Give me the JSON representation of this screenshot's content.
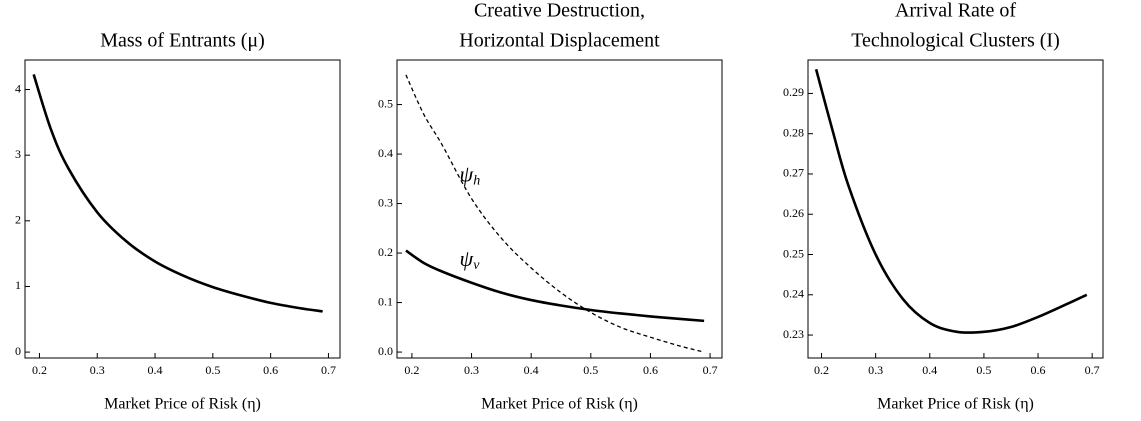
{
  "chart_data": [
    {
      "type": "line",
      "title": [
        "Mass of Entrants (μ)"
      ],
      "xlabel": "Market Price of Risk (η)",
      "x": [
        0.19,
        0.22,
        0.25,
        0.3,
        0.35,
        0.4,
        0.45,
        0.5,
        0.55,
        0.6,
        0.65,
        0.69
      ],
      "series": [
        {
          "color": "#000000",
          "line_style": "solid",
          "values": [
            4.23,
            3.39,
            2.8,
            2.13,
            1.69,
            1.38,
            1.16,
            0.99,
            0.86,
            0.75,
            0.67,
            0.62
          ]
        }
      ],
      "xlim": [
        0.175,
        0.72
      ],
      "xticks": [
        0.2,
        0.3,
        0.4,
        0.5,
        0.6,
        0.7
      ],
      "ylim": [
        -0.09,
        4.45
      ],
      "yticks": [
        0,
        1,
        2,
        3,
        4
      ]
    },
    {
      "type": "line",
      "title": [
        "Creative Destruction,",
        "Horizontal Displacement"
      ],
      "xlabel": "Market Price of Risk (η)",
      "x": [
        0.19,
        0.22,
        0.25,
        0.3,
        0.35,
        0.4,
        0.45,
        0.5,
        0.55,
        0.6,
        0.65,
        0.69
      ],
      "series": [
        {
          "name": "ψh",
          "color": "#000000",
          "line_style": "dashed",
          "values": [
            0.56,
            0.48,
            0.42,
            0.31,
            0.23,
            0.17,
            0.12,
            0.08,
            0.05,
            0.03,
            0.012,
            0.0
          ]
        },
        {
          "name": "ψv",
          "color": "#000000",
          "line_style": "solid",
          "values": [
            0.205,
            0.18,
            0.163,
            0.14,
            0.12,
            0.105,
            0.094,
            0.085,
            0.078,
            0.072,
            0.067,
            0.063
          ]
        }
      ],
      "xlim": [
        0.175,
        0.72
      ],
      "xticks": [
        0.2,
        0.3,
        0.4,
        0.5,
        0.6,
        0.7
      ],
      "ylim": [
        -0.012,
        0.59
      ],
      "yticks": [
        {
          "value": 0,
          "label": "0.0"
        },
        0.1,
        0.2,
        0.3,
        0.4,
        0.5
      ]
    },
    {
      "type": "line",
      "title": [
        "Arrival Rate of",
        "Technological Clusters (I)"
      ],
      "xlabel": "Market Price of Risk (η)",
      "x": [
        0.19,
        0.22,
        0.25,
        0.3,
        0.35,
        0.4,
        0.45,
        0.5,
        0.55,
        0.6,
        0.65,
        0.69
      ],
      "series": [
        {
          "color": "#000000",
          "line_style": "solid",
          "values": [
            0.296,
            0.281,
            0.267,
            0.25,
            0.239,
            0.233,
            0.2308,
            0.2308,
            0.232,
            0.2345,
            0.2375,
            0.24
          ]
        }
      ],
      "xlim": [
        0.175,
        0.72
      ],
      "xticks": [
        0.2,
        0.3,
        0.4,
        0.5,
        0.6,
        0.7
      ],
      "ylim": [
        0.2243,
        0.2983
      ],
      "yticks": [
        0.23,
        0.24,
        0.25,
        0.26,
        0.27,
        0.28,
        0.29
      ]
    }
  ]
}
